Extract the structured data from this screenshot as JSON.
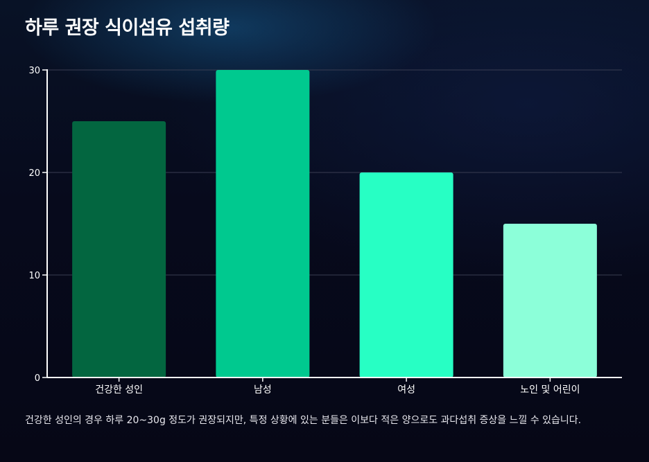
{
  "title": "하루 권장 식이섬유 섭취량",
  "caption": "건강한 성인의 경우 하루 20~30g 정도가 권장되지만, 특정 상황에 있는 분들은 이보다 적은 양으로도 과다섭취 증상을 느낄 수 있습니다.",
  "colors": {
    "background": "#070818",
    "grid": "#3a3d52",
    "axis": "#ffffff"
  },
  "chart_data": {
    "type": "bar",
    "categories": [
      "건강한 성인",
      "남성",
      "여성",
      "노인 및 어린이"
    ],
    "values": [
      25,
      30,
      20,
      15
    ],
    "bar_colors": [
      "#036640",
      "#00c98f",
      "#27ffc4",
      "#8cffd9"
    ],
    "ylim": [
      0,
      30
    ],
    "yticks": [
      0,
      10,
      20,
      30
    ],
    "grid": true,
    "legend": "none"
  }
}
